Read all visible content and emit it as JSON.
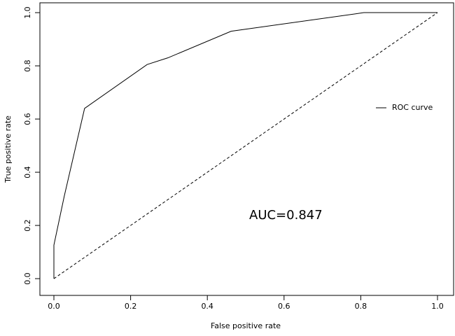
{
  "chart_data": {
    "type": "line",
    "xlabel": "False positive rate",
    "ylabel": "True positive rate",
    "annotation": "AUC=0.847",
    "series": [
      {
        "name": "ROC curve",
        "color": "#000000",
        "x": [
          0,
          0,
          0.027,
          0.08,
          0.243,
          0.297,
          0.462,
          0.808,
          1
        ],
        "values": [
          0,
          0.126,
          0.31,
          0.64,
          0.805,
          0.83,
          0.93,
          1,
          1
        ]
      }
    ],
    "diagonal": {
      "x": [
        0,
        1
      ],
      "values": [
        0,
        1
      ],
      "color": "#000000",
      "dashed": true
    },
    "xlim": [
      -0.0365,
      1.042
    ],
    "ylim": [
      -0.063,
      1.037
    ],
    "xticks": [
      {
        "value": 0,
        "label": "0.0"
      },
      0.2,
      0.4,
      0.6,
      0.8,
      {
        "value": 1,
        "label": "1.0"
      }
    ],
    "yticks": [
      {
        "value": 0,
        "label": "0.0"
      },
      0.2,
      0.4,
      0.6,
      0.8,
      {
        "value": 1,
        "label": "1.0"
      }
    ],
    "legend": "right"
  }
}
